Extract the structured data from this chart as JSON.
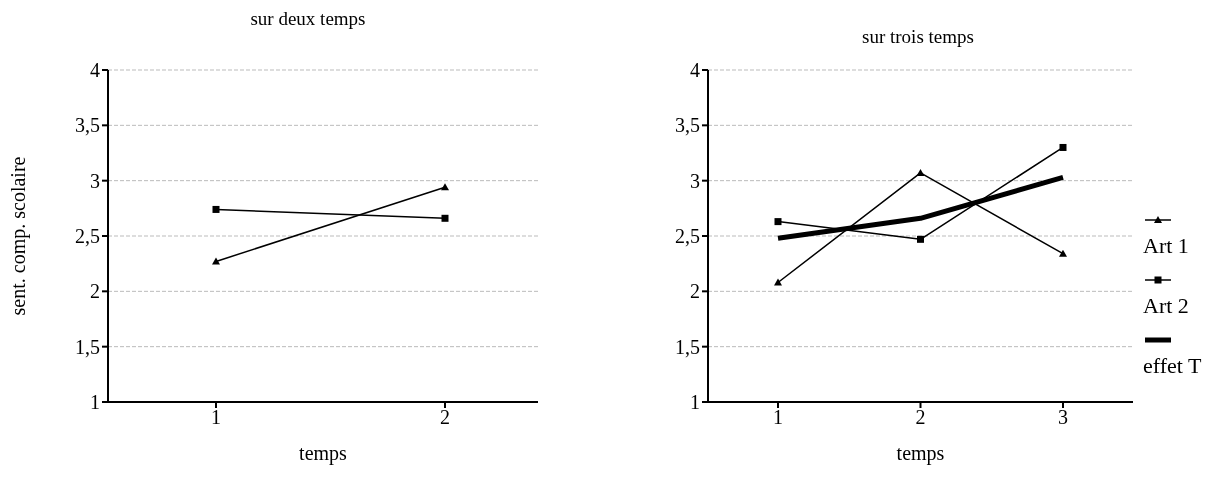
{
  "chart_data": [
    {
      "type": "line",
      "title": "sur deux temps",
      "xlabel": "temps",
      "ylabel": "sent. comp. scolaire",
      "categories": [
        "1",
        "2"
      ],
      "series": [
        {
          "color": "#000000",
          "marker": "triangle",
          "values": [
            2.27,
            2.94
          ]
        },
        {
          "color": "#000000",
          "marker": "square",
          "values": [
            2.74,
            2.66
          ]
        }
      ],
      "ylim": [
        1,
        4
      ],
      "yticks": [
        1,
        {
          "value": 1.5,
          "label": "1,5"
        },
        2,
        {
          "value": 2.5,
          "label": "2,5"
        },
        3,
        {
          "value": 3.5,
          "label": "3,5"
        },
        4
      ],
      "grid": "y",
      "legend": false
    },
    {
      "type": "line",
      "title": "sur trois temps",
      "xlabel": "temps",
      "categories": [
        "1",
        "2",
        "3"
      ],
      "series": [
        {
          "name": "Art 1",
          "color": "#000000",
          "marker": "triangle",
          "values": [
            2.08,
            3.07,
            2.34
          ]
        },
        {
          "name": "Art 2",
          "color": "#000000",
          "marker": "square",
          "values": [
            2.63,
            2.47,
            3.3
          ]
        },
        {
          "name": "effet T",
          "color": "#000000",
          "marker": "none",
          "values": [
            2.48,
            2.66,
            3.03
          ]
        }
      ],
      "ylim": [
        1,
        4
      ],
      "yticks": [
        1,
        {
          "value": 1.5,
          "label": "1,5"
        },
        2,
        {
          "value": 2.5,
          "label": "2,5"
        },
        3,
        {
          "value": 3.5,
          "label": "3,5"
        },
        4
      ],
      "grid": "y",
      "legend": "right"
    }
  ]
}
